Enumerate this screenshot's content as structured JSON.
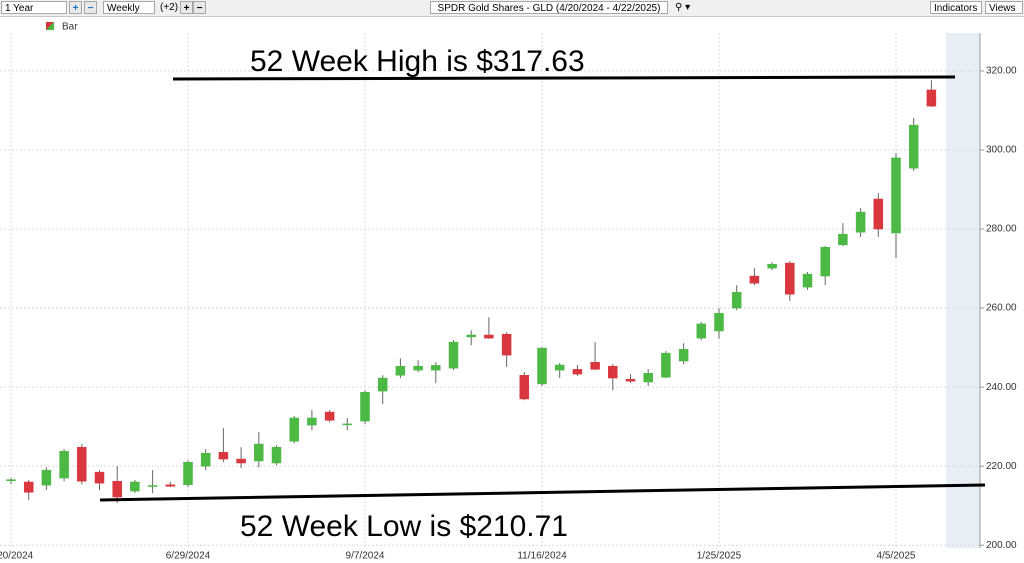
{
  "toolbar": {
    "range": "1 Year",
    "interval": "Weekly",
    "extra": "(+2)",
    "indicators": "Indicators",
    "views": "Views"
  },
  "chart_data": {
    "type": "candlestick",
    "title": "SPDR Gold Shares - GLD (4/20/2024 - 4/22/2025)",
    "legend": "Bar",
    "annotations": [
      "52 Week High is $317.63",
      "52 Week Low is $210.71"
    ],
    "up_color": "#4cb944",
    "down_color": "#d9363e",
    "grid": true,
    "categories": [
      "4/20/2024",
      null,
      null,
      null,
      null,
      null,
      null,
      null,
      null,
      null,
      "6/29/2024",
      null,
      null,
      null,
      null,
      null,
      null,
      null,
      null,
      null,
      "9/7/2024",
      null,
      null,
      null,
      null,
      null,
      null,
      null,
      null,
      null,
      "11/16/2024",
      null,
      null,
      null,
      null,
      null,
      null,
      null,
      null,
      null,
      "1/25/2025",
      null,
      null,
      null,
      null,
      null,
      null,
      null,
      null,
      null,
      "4/5/2025",
      null,
      null
    ],
    "open": [
      216.3,
      216,
      215.2,
      217,
      224.8,
      218.5,
      216.2,
      213.7,
      215,
      215.3,
      215.3,
      220,
      223.5,
      221.8,
      221.3,
      220.8,
      226.3,
      230.4,
      233.7,
      230.5,
      231.4,
      239,
      243,
      244.3,
      244.3,
      244.8,
      252.7,
      253.2,
      253.4,
      243,
      240.8,
      244.3,
      244.5,
      246.3,
      245.3,
      242,
      241.3,
      242.5,
      246.6,
      252.4,
      254.2,
      260,
      268.1,
      270.1,
      271.4,
      265.3,
      268.1,
      276,
      279.2,
      287.6,
      279,
      295.4,
      315.2
    ],
    "high": [
      217,
      216.5,
      219.7,
      224.3,
      225.6,
      219,
      220,
      216.5,
      219,
      216,
      221.5,
      224.3,
      229.6,
      224.8,
      228.6,
      225.3,
      232.7,
      234.2,
      234.2,
      232.2,
      239.2,
      243,
      247.3,
      246.8,
      246.3,
      251.9,
      254.4,
      257.7,
      253.9,
      243.8,
      250.1,
      246.1,
      245.6,
      251.4,
      245.8,
      243.3,
      244.6,
      249.1,
      251.1,
      256.5,
      260,
      265.8,
      270.1,
      271.6,
      271.9,
      269.1,
      275.7,
      281.5,
      285.3,
      289.1,
      299.2,
      308.1,
      317.63
    ],
    "low": [
      215.5,
      211.4,
      214,
      216.2,
      215.4,
      213.9,
      210.71,
      213.2,
      213.2,
      214.7,
      214.7,
      219,
      221,
      219.5,
      219.7,
      220.3,
      225.8,
      229.1,
      231.1,
      229.1,
      230.6,
      235.7,
      242.3,
      243.8,
      241,
      244.3,
      250.6,
      252.2,
      245.1,
      236.7,
      240.3,
      242.3,
      242.8,
      244.3,
      239.2,
      241,
      240.3,
      242.3,
      245.8,
      251.9,
      252.2,
      259.5,
      265.8,
      269.6,
      261.8,
      264.6,
      265.8,
      275.7,
      278,
      278,
      272.7,
      294.7,
      310.9
    ],
    "close": [
      216.6,
      213.4,
      219,
      223.8,
      216.2,
      215.7,
      212.2,
      216,
      215.1,
      214.9,
      221,
      223.3,
      221.8,
      220.8,
      225.6,
      224.8,
      232.2,
      232.2,
      231.6,
      230.7,
      238.7,
      242.3,
      245.3,
      245.3,
      245.5,
      251.4,
      253.2,
      252.4,
      248.1,
      237,
      249.9,
      245.6,
      243.3,
      244.5,
      242.3,
      241.5,
      243.5,
      248.6,
      249.6,
      256,
      258.7,
      264,
      266.3,
      271.1,
      263.5,
      268.6,
      275.4,
      278.7,
      284.3,
      280,
      298,
      306.3,
      311.1
    ],
    "ylim": [
      199.3,
      329.6
    ],
    "yticks": [
      {
        "value": 200,
        "label": "200.00"
      },
      {
        "value": 220,
        "label": "220.00"
      },
      {
        "value": 240,
        "label": "240.00"
      },
      {
        "value": 260,
        "label": "260.00"
      },
      {
        "value": 280,
        "label": "280.00"
      },
      {
        "value": 300,
        "label": "300.00"
      },
      {
        "value": 320,
        "label": "320.00"
      }
    ]
  }
}
